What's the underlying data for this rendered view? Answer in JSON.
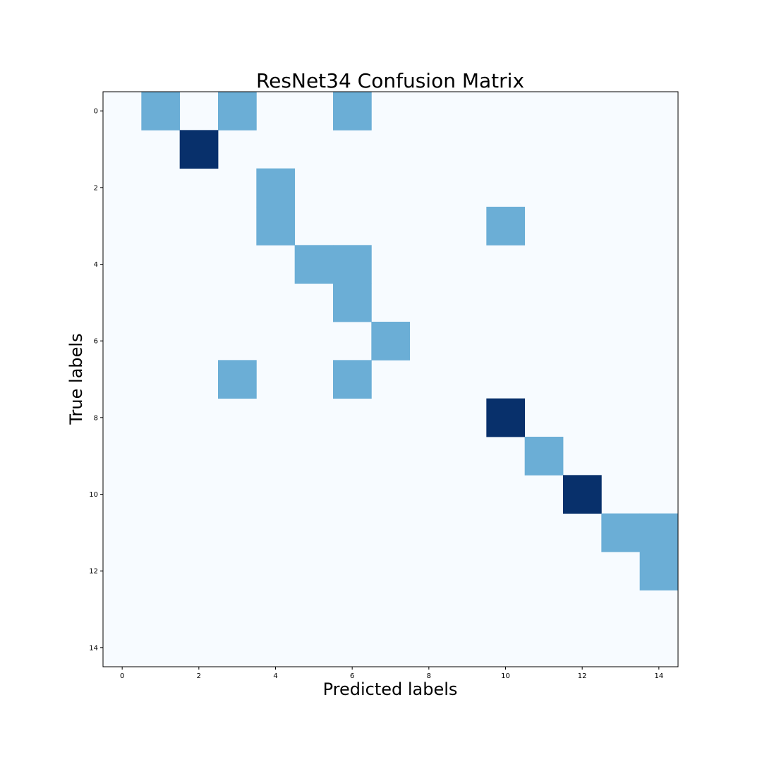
{
  "chart_data": {
    "type": "heatmap",
    "title": "ResNet34 Confusion Matrix",
    "xlabel": "Predicted labels",
    "ylabel": "True labels",
    "n_classes": 15,
    "xticks": [
      0,
      2,
      4,
      6,
      8,
      10,
      12,
      14
    ],
    "yticks": [
      0,
      2,
      4,
      6,
      8,
      10,
      12,
      14
    ],
    "xlim": [
      -0.5,
      14.5
    ],
    "ylim": [
      14.5,
      -0.5
    ],
    "colormap": "Blues",
    "colors": {
      "zero": "#f7fbff",
      "one": "#6baed6",
      "two": "#08306b"
    },
    "cells": [
      {
        "true": 0,
        "pred": 1,
        "value": 1
      },
      {
        "true": 0,
        "pred": 3,
        "value": 1
      },
      {
        "true": 0,
        "pred": 6,
        "value": 1
      },
      {
        "true": 1,
        "pred": 2,
        "value": 2
      },
      {
        "true": 2,
        "pred": 4,
        "value": 1
      },
      {
        "true": 3,
        "pred": 4,
        "value": 1
      },
      {
        "true": 3,
        "pred": 10,
        "value": 1
      },
      {
        "true": 4,
        "pred": 5,
        "value": 1
      },
      {
        "true": 4,
        "pred": 6,
        "value": 1
      },
      {
        "true": 5,
        "pred": 6,
        "value": 1
      },
      {
        "true": 6,
        "pred": 7,
        "value": 1
      },
      {
        "true": 7,
        "pred": 3,
        "value": 1
      },
      {
        "true": 7,
        "pred": 6,
        "value": 1
      },
      {
        "true": 8,
        "pred": 10,
        "value": 2
      },
      {
        "true": 9,
        "pred": 11,
        "value": 1
      },
      {
        "true": 10,
        "pred": 12,
        "value": 2
      },
      {
        "true": 11,
        "pred": 13,
        "value": 1
      },
      {
        "true": 11,
        "pred": 14,
        "value": 1
      },
      {
        "true": 12,
        "pred": 14,
        "value": 1
      }
    ]
  }
}
